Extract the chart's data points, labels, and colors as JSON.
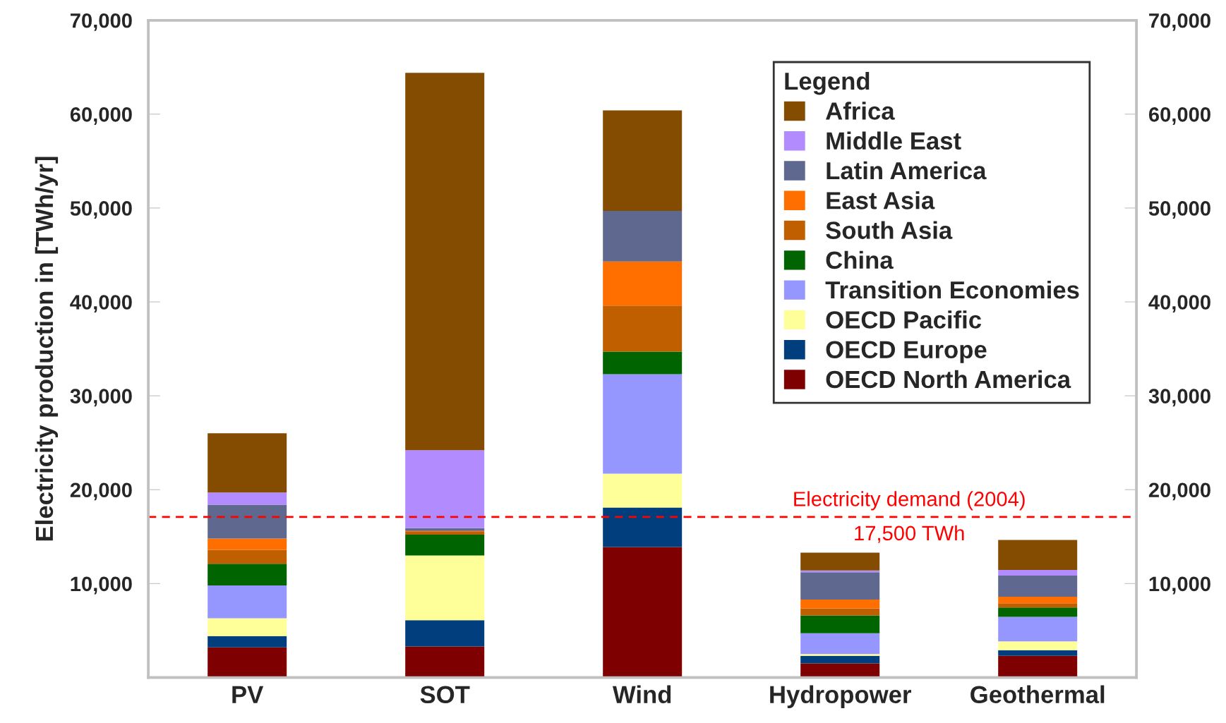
{
  "chart_data": {
    "type": "bar",
    "stacked": true,
    "categories": [
      "PV",
      "SOT",
      "Wind",
      "Hydropower",
      "Geothermal"
    ],
    "ylabel": "Electricity production in [TWh/yr]",
    "legend_title": "Legend",
    "legend": "top right",
    "grid": false,
    "ylim": [
      0,
      70000
    ],
    "yticks": [
      {
        "value": 0,
        "label": null
      },
      {
        "value": 10000,
        "label": "10,000"
      },
      {
        "value": 20000,
        "label": "20,000"
      },
      {
        "value": 30000,
        "label": "30,000"
      },
      {
        "value": 40000,
        "label": "40,000"
      },
      {
        "value": 50000,
        "label": "50,000"
      },
      {
        "value": 60000,
        "label": "60,000"
      },
      {
        "value": 70000,
        "label": "70,000"
      }
    ],
    "y2lim": [
      0,
      70000
    ],
    "y2ticks": [
      {
        "value": 0,
        "label": null
      },
      {
        "value": 10000,
        "label": "10,000"
      },
      {
        "value": 20000,
        "label": "20,000"
      },
      {
        "value": 30000,
        "label": "30,000"
      },
      {
        "value": 40000,
        "label": "40,000"
      },
      {
        "value": 50000,
        "label": "50,000"
      },
      {
        "value": 60000,
        "label": "60,000"
      },
      {
        "value": 70000,
        "label": "70,000"
      }
    ],
    "series": [
      {
        "name": "OECD North America",
        "color": "#7f0000",
        "values": [
          3200,
          3300,
          13900,
          1500,
          2300
        ]
      },
      {
        "name": "OECD Europe",
        "color": "#003e7e",
        "values": [
          1200,
          2800,
          4200,
          800,
          600
        ]
      },
      {
        "name": "OECD Pacific",
        "color": "#ffff99",
        "values": [
          1900,
          6900,
          3600,
          200,
          950
        ]
      },
      {
        "name": "Transition Economies",
        "color": "#9696ff",
        "values": [
          3500,
          0,
          10600,
          2200,
          2600
        ]
      },
      {
        "name": "China",
        "color": "#006400",
        "values": [
          2300,
          2200,
          2400,
          1900,
          1000
        ]
      },
      {
        "name": "South Asia",
        "color": "#c05f00",
        "values": [
          1500,
          300,
          4900,
          750,
          450
        ]
      },
      {
        "name": "East Asia",
        "color": "#ff6f00",
        "values": [
          1200,
          100,
          4700,
          950,
          700
        ]
      },
      {
        "name": "Latin America",
        "color": "#5f698f",
        "values": [
          3600,
          300,
          5400,
          2900,
          2250
        ]
      },
      {
        "name": "Middle East",
        "color": "#b28cff",
        "values": [
          1300,
          8300,
          0,
          200,
          600
        ]
      },
      {
        "name": "Africa",
        "color": "#844c00",
        "values": [
          6300,
          40200,
          10700,
          1900,
          3200
        ]
      }
    ],
    "ref_lines": [
      {
        "axis": "y",
        "value": 17100,
        "label": "Electricity demand (2004)",
        "color": "#ff0000",
        "line_style": "dashed"
      }
    ],
    "annotations": [
      "17,500 TWh"
    ]
  }
}
